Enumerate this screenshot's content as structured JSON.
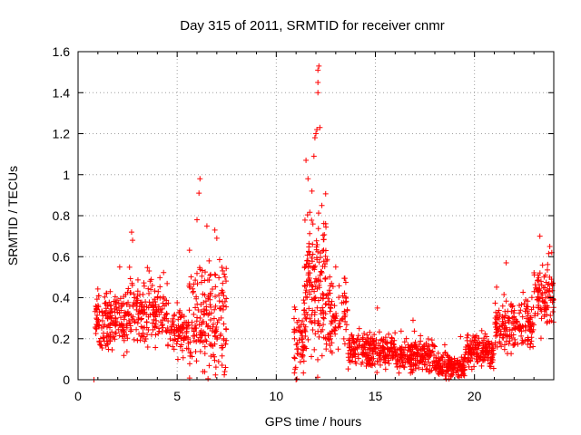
{
  "chart_data": {
    "type": "scatter",
    "title": "Day 315 of 2011, SRMTID for receiver cnmr",
    "xlabel": "GPS time / hours",
    "ylabel": "SRMTID / TECUs",
    "xlim": [
      0,
      24
    ],
    "ylim": [
      0,
      1.6
    ],
    "grid": true,
    "marker": "+",
    "color": "#ff0000",
    "x_ticks": [
      0,
      5,
      10,
      15,
      20
    ],
    "x_tick_labels": [
      "0",
      "5",
      "10",
      "15",
      "20"
    ],
    "y_ticks": [
      0,
      0.2,
      0.4,
      0.6,
      0.8,
      1.0,
      1.2,
      1.4,
      1.6
    ],
    "y_tick_labels": [
      "0",
      "0.2",
      "0.4",
      "0.6",
      "0.8",
      "1",
      "1.2",
      "1.4",
      "1.6"
    ],
    "series": [
      {
        "name": "SRMTID",
        "segments": [
          {
            "x_range": [
              0.85,
              2.5
            ],
            "base": 0.3,
            "spread": 0.13,
            "count": 170
          },
          {
            "x_range": [
              2.5,
              4.5
            ],
            "base": 0.34,
            "spread": 0.14,
            "count": 170
          },
          {
            "x_range": [
              4.5,
              5.6
            ],
            "base": 0.24,
            "spread": 0.1,
            "count": 90
          },
          {
            "x_range": [
              5.6,
              7.5
            ],
            "base": 0.3,
            "spread": 0.22,
            "count": 190
          },
          {
            "x_range": [
              10.9,
              11.4
            ],
            "base": 0.18,
            "spread": 0.15,
            "count": 50
          },
          {
            "x_range": [
              11.4,
              12.6
            ],
            "base": 0.45,
            "spread": 0.3,
            "count": 170
          },
          {
            "x_range": [
              12.6,
              13.6
            ],
            "base": 0.3,
            "spread": 0.14,
            "count": 80
          },
          {
            "x_range": [
              13.6,
              16.0
            ],
            "base": 0.15,
            "spread": 0.08,
            "count": 230
          },
          {
            "x_range": [
              16.0,
              18.0
            ],
            "base": 0.12,
            "spread": 0.07,
            "count": 190
          },
          {
            "x_range": [
              18.0,
              19.5
            ],
            "base": 0.07,
            "spread": 0.05,
            "count": 150
          },
          {
            "x_range": [
              19.5,
              21.0
            ],
            "base": 0.14,
            "spread": 0.07,
            "count": 150
          },
          {
            "x_range": [
              21.0,
              23.0
            ],
            "base": 0.28,
            "spread": 0.11,
            "count": 180
          },
          {
            "x_range": [
              23.0,
              24.0
            ],
            "base": 0.4,
            "spread": 0.14,
            "count": 100
          }
        ],
        "highlights": [
          {
            "x": 0.8,
            "y": 0.0
          },
          {
            "x": 2.1,
            "y": 0.55
          },
          {
            "x": 2.7,
            "y": 0.72
          },
          {
            "x": 2.75,
            "y": 0.68
          },
          {
            "x": 6.0,
            "y": 0.78
          },
          {
            "x": 6.1,
            "y": 0.91
          },
          {
            "x": 6.15,
            "y": 0.98
          },
          {
            "x": 6.5,
            "y": 0.75
          },
          {
            "x": 6.9,
            "y": 0.73
          },
          {
            "x": 7.0,
            "y": 0.69
          },
          {
            "x": 6.3,
            "y": 0.04
          },
          {
            "x": 7.4,
            "y": 0.04
          },
          {
            "x": 11.0,
            "y": 0.0
          },
          {
            "x": 11.5,
            "y": 1.07
          },
          {
            "x": 11.6,
            "y": 0.98
          },
          {
            "x": 11.8,
            "y": 0.92
          },
          {
            "x": 11.9,
            "y": 1.09
          },
          {
            "x": 11.95,
            "y": 1.18
          },
          {
            "x": 12.0,
            "y": 1.2
          },
          {
            "x": 12.05,
            "y": 1.22
          },
          {
            "x": 12.1,
            "y": 1.4
          },
          {
            "x": 12.1,
            "y": 1.45
          },
          {
            "x": 12.1,
            "y": 1.51
          },
          {
            "x": 12.15,
            "y": 1.53
          },
          {
            "x": 12.2,
            "y": 1.23
          },
          {
            "x": 12.3,
            "y": 0.85
          },
          {
            "x": 12.5,
            "y": 0.63
          },
          {
            "x": 13.0,
            "y": 0.55
          },
          {
            "x": 15.1,
            "y": 0.35
          },
          {
            "x": 16.9,
            "y": 0.29
          },
          {
            "x": 18.5,
            "y": 0.17
          },
          {
            "x": 19.3,
            "y": 0.21
          },
          {
            "x": 21.6,
            "y": 0.57
          },
          {
            "x": 23.3,
            "y": 0.7
          },
          {
            "x": 23.8,
            "y": 0.65
          },
          {
            "x": 23.9,
            "y": 0.62
          }
        ]
      }
    ]
  }
}
